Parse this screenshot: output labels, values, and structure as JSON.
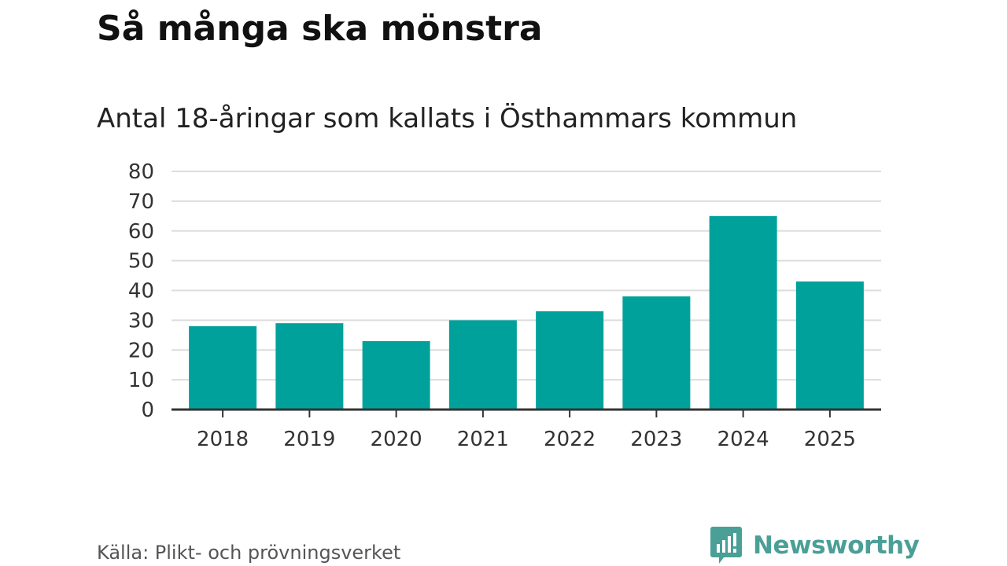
{
  "chart_data": {
    "type": "bar",
    "title": "Så många ska mönstra",
    "subtitle": "Antal 18-åringar som kallats i Östhammars kommun",
    "xlabel": "",
    "ylabel": "",
    "categories": [
      "2018",
      "2019",
      "2020",
      "2021",
      "2022",
      "2023",
      "2024",
      "2025"
    ],
    "values": [
      28,
      29,
      23,
      30,
      33,
      38,
      65,
      43
    ],
    "ylim": [
      0,
      80
    ],
    "yticks": [
      0,
      10,
      20,
      30,
      40,
      50,
      60,
      70,
      80
    ],
    "grid": true,
    "legend": "none",
    "bar_color": "#00a19a",
    "grid_color": "#dddddd",
    "axis_color": "#333333"
  },
  "source": "Källa: Plikt- och prövningsverket",
  "brand": {
    "name": "Newsworthy",
    "icon": "newsworthy-logo-icon",
    "color": "#4a9f97"
  }
}
